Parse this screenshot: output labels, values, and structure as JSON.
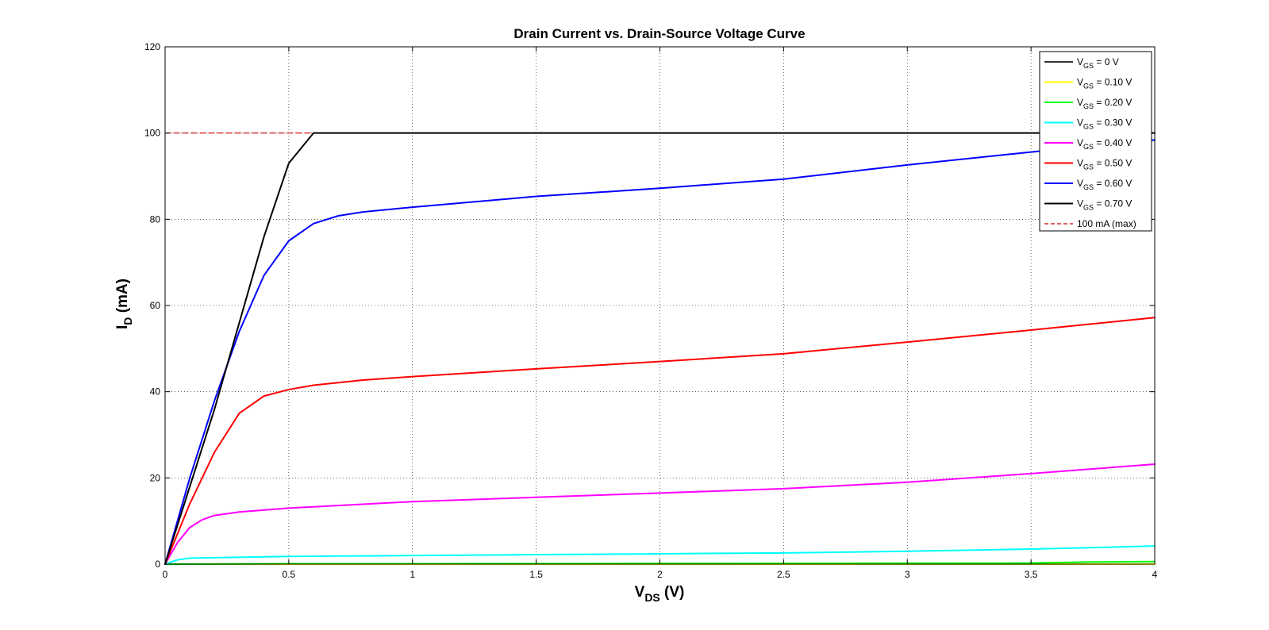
{
  "chart_data": {
    "type": "line",
    "title": "Drain Current vs. Drain-Source Voltage Curve",
    "xlabel": {
      "main": "V",
      "sub": "DS",
      "suffix": " (V)"
    },
    "ylabel": {
      "main": "I",
      "sub": "D",
      "suffix": " (mA)"
    },
    "xlim": [
      0,
      4
    ],
    "ylim": [
      0,
      120
    ],
    "xticks": [
      0,
      0.5,
      1,
      1.5,
      2,
      2.5,
      3,
      3.5,
      4
    ],
    "xtick_labels": [
      "0",
      "0.5",
      "1",
      "1.5",
      "2",
      "2.5",
      "3",
      "3.5",
      "4"
    ],
    "yticks": [
      0,
      20,
      40,
      60,
      80,
      100,
      120
    ],
    "ytick_labels": [
      "0",
      "20",
      "40",
      "60",
      "80",
      "100",
      "120"
    ],
    "grid": true,
    "legend_position": "top-right",
    "series": [
      {
        "name": "V_GS = 0 V",
        "legend": {
          "main": "V",
          "sub": "GS",
          "suffix": " = 0 V"
        },
        "color": "#333333",
        "style": "solid",
        "x": [
          0,
          4
        ],
        "y": [
          0,
          0
        ]
      },
      {
        "name": "V_GS = 0.10 V",
        "legend": {
          "main": "V",
          "sub": "GS",
          "suffix": " = 0.10 V"
        },
        "color": "#ffff00",
        "style": "solid",
        "x": [
          0,
          4
        ],
        "y": [
          0,
          0
        ]
      },
      {
        "name": "V_GS = 0.20 V",
        "legend": {
          "main": "V",
          "sub": "GS",
          "suffix": " = 0.20 V"
        },
        "color": "#00ff00",
        "style": "solid",
        "x": [
          0,
          0.5,
          1,
          2,
          3,
          3.5,
          3.75,
          4
        ],
        "y": [
          0,
          0.1,
          0.1,
          0.15,
          0.2,
          0.25,
          0.5,
          0.6
        ]
      },
      {
        "name": "V_GS = 0.30 V",
        "legend": {
          "main": "V",
          "sub": "GS",
          "suffix": " = 0.30 V"
        },
        "color": "#00ffff",
        "style": "solid",
        "x": [
          0,
          0.05,
          0.1,
          0.2,
          0.5,
          1,
          1.5,
          2,
          2.5,
          3,
          3.5,
          4
        ],
        "y": [
          0,
          1.0,
          1.4,
          1.5,
          1.8,
          2.0,
          2.2,
          2.4,
          2.6,
          3.0,
          3.5,
          4.2
        ]
      },
      {
        "name": "V_GS = 0.40 V",
        "legend": {
          "main": "V",
          "sub": "GS",
          "suffix": " = 0.40 V"
        },
        "color": "#ff00ff",
        "style": "solid",
        "x": [
          0,
          0.05,
          0.1,
          0.15,
          0.2,
          0.3,
          0.5,
          1,
          1.5,
          2,
          2.5,
          3,
          3.5,
          4
        ],
        "y": [
          0,
          5,
          8.5,
          10.3,
          11.3,
          12.1,
          13.0,
          14.5,
          15.5,
          16.5,
          17.5,
          19.0,
          21.0,
          23.2
        ]
      },
      {
        "name": "V_GS = 0.50 V",
        "legend": {
          "main": "V",
          "sub": "GS",
          "suffix": " = 0.50 V"
        },
        "color": "#ff0000",
        "style": "solid",
        "x": [
          0,
          0.1,
          0.2,
          0.3,
          0.4,
          0.5,
          0.6,
          0.8,
          1,
          1.5,
          2,
          2.5,
          3,
          3.5,
          4
        ],
        "y": [
          0,
          14,
          26,
          35,
          39,
          40.5,
          41.5,
          42.7,
          43.5,
          45.3,
          47,
          48.8,
          51.5,
          54.3,
          57.2
        ]
      },
      {
        "name": "V_GS = 0.60 V",
        "legend": {
          "main": "V",
          "sub": "GS",
          "suffix": " = 0.60 V"
        },
        "color": "#0000ff",
        "style": "solid",
        "x": [
          0,
          0.1,
          0.2,
          0.3,
          0.4,
          0.5,
          0.6,
          0.7,
          0.8,
          1,
          1.5,
          2,
          2.5,
          3,
          3.5,
          4
        ],
        "y": [
          0,
          20,
          38,
          54,
          67,
          75,
          79,
          80.8,
          81.7,
          82.8,
          85.3,
          87.2,
          89.3,
          92.6,
          95.6,
          98.4
        ]
      },
      {
        "name": "V_GS = 0.70 V",
        "legend": {
          "main": "V",
          "sub": "GS",
          "suffix": " = 0.70 V"
        },
        "color": "#000000",
        "style": "solid",
        "x": [
          0,
          0.1,
          0.2,
          0.3,
          0.4,
          0.5,
          0.6,
          4
        ],
        "y": [
          0,
          18,
          36,
          56,
          76,
          93,
          100,
          100
        ]
      },
      {
        "name": "100 mA (max)",
        "legend": {
          "main": "100 mA (max)",
          "sub": "",
          "suffix": ""
        },
        "color": "#cc0000",
        "style": "dashed",
        "x": [
          0,
          4
        ],
        "y": [
          100,
          100
        ]
      }
    ]
  }
}
